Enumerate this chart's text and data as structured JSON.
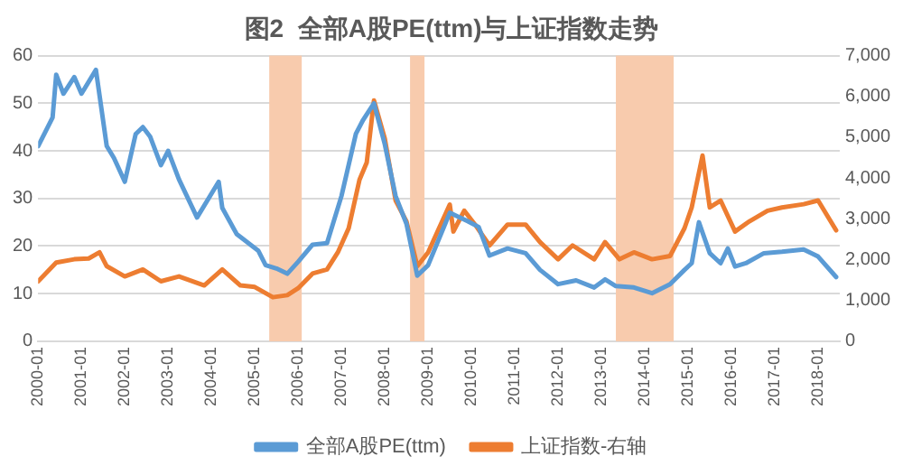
{
  "chart_data": {
    "type": "line",
    "title": "图2  全部A股PE(ttm)与上证指数走势",
    "xlim": [
      "2000-01",
      "2018-07"
    ],
    "xticks": [
      "2000-01",
      "2001-01",
      "2002-01",
      "2003-01",
      "2004-01",
      "2005-01",
      "2006-01",
      "2007-01",
      "2008-01",
      "2009-01",
      "2010-01",
      "2011-01",
      "2012-01",
      "2013-01",
      "2014-01",
      "2015-01",
      "2016-01",
      "2017-01",
      "2018-01"
    ],
    "ylim": [
      0,
      60
    ],
    "yticks": [
      0,
      10,
      20,
      30,
      40,
      50,
      60
    ],
    "y2lim": [
      0,
      7000
    ],
    "y2ticks": [
      {
        "value": 0,
        "label": "0"
      },
      {
        "value": 1000,
        "label": "1,000"
      },
      {
        "value": 2000,
        "label": "2,000"
      },
      {
        "value": 3000,
        "label": "3,000"
      },
      {
        "value": 4000,
        "label": "4,000"
      },
      {
        "value": 5000,
        "label": "5,000"
      },
      {
        "value": 6000,
        "label": "6,000"
      },
      {
        "value": 7000,
        "label": "7,000"
      }
    ],
    "grid": "y",
    "legend": "bottom",
    "marker": "none",
    "line_style": "solid",
    "bands": [
      {
        "axis": "x",
        "from": "2005-05",
        "to": "2006-02",
        "color": "#f8cbad"
      },
      {
        "axis": "x",
        "from": "2008-08",
        "to": "2008-12",
        "color": "#f8cbad"
      },
      {
        "axis": "x",
        "from": "2013-05",
        "to": "2014-09",
        "color": "#f8cbad"
      }
    ],
    "series": [
      {
        "name": "全部A股PE(ttm)",
        "color": "#5b9bd5",
        "x": [
          "2000-01",
          "2000-05",
          "2000-06",
          "2000-08",
          "2000-11",
          "2001-01",
          "2001-05",
          "2001-08",
          "2001-10",
          "2002-01",
          "2002-04",
          "2002-06",
          "2002-08",
          "2002-11",
          "2003-01",
          "2003-04",
          "2003-09",
          "2004-03",
          "2004-04",
          "2004-08",
          "2005-02",
          "2005-04",
          "2005-07",
          "2005-10",
          "2006-01",
          "2006-05",
          "2006-09",
          "2007-01",
          "2007-05",
          "2007-07",
          "2007-10",
          "2008-01",
          "2008-04",
          "2008-07",
          "2008-10",
          "2009-01",
          "2009-07",
          "2009-12",
          "2010-03",
          "2010-06",
          "2010-11",
          "2011-04",
          "2011-08",
          "2012-01",
          "2012-06",
          "2012-11",
          "2013-02",
          "2013-05",
          "2013-10",
          "2014-03",
          "2014-08",
          "2014-12",
          "2015-02",
          "2015-04",
          "2015-07",
          "2015-10",
          "2015-12",
          "2016-02",
          "2016-05",
          "2016-10",
          "2017-03",
          "2017-09",
          "2018-01",
          "2018-06"
        ],
        "values": [
          41,
          47,
          56,
          52,
          55.5,
          52,
          57,
          41,
          38.5,
          33.5,
          43.5,
          45,
          43,
          37,
          40,
          34,
          26,
          33.5,
          28,
          22.5,
          19,
          16,
          15.3,
          14.2,
          16.7,
          20.3,
          20.6,
          30.5,
          43.6,
          46.5,
          50,
          41.4,
          30.5,
          24.7,
          13.8,
          16,
          27,
          25.2,
          24,
          18,
          19.5,
          18.5,
          15,
          12,
          12.8,
          11.3,
          13,
          11.6,
          11.3,
          10.1,
          12,
          15,
          16.4,
          25,
          18.5,
          16.4,
          19.5,
          15.7,
          16.4,
          18.5,
          18.8,
          19.3,
          17.8,
          13.5
        ]
      },
      {
        "name": "上证指数-右轴",
        "color": "#ed7d31",
        "axis": "y2",
        "x": [
          "2000-01",
          "2000-06",
          "2000-11",
          "2001-03",
          "2001-06",
          "2001-08",
          "2002-01",
          "2002-06",
          "2002-11",
          "2003-04",
          "2003-11",
          "2004-04",
          "2004-09",
          "2005-01",
          "2005-06",
          "2005-10",
          "2006-01",
          "2006-05",
          "2006-09",
          "2006-12",
          "2007-03",
          "2007-06",
          "2007-08",
          "2007-10",
          "2008-01",
          "2008-04",
          "2008-07",
          "2008-10",
          "2009-01",
          "2009-07",
          "2009-08",
          "2009-11",
          "2010-02",
          "2010-06",
          "2010-11",
          "2011-04",
          "2011-08",
          "2012-01",
          "2012-05",
          "2012-11",
          "2013-02",
          "2013-06",
          "2013-10",
          "2014-03",
          "2014-08",
          "2014-12",
          "2015-02",
          "2015-05",
          "2015-07",
          "2015-10",
          "2016-02",
          "2016-06",
          "2016-11",
          "2017-03",
          "2017-09",
          "2018-01",
          "2018-06"
        ],
        "values": [
          1470,
          1930,
          2010,
          2030,
          2180,
          1840,
          1590,
          1760,
          1470,
          1590,
          1370,
          1760,
          1370,
          1330,
          1080,
          1130,
          1300,
          1660,
          1760,
          2180,
          2770,
          3960,
          4380,
          5900,
          4970,
          3450,
          2940,
          1840,
          2180,
          3350,
          2690,
          3200,
          2860,
          2350,
          2860,
          2860,
          2430,
          2010,
          2350,
          2010,
          2430,
          2010,
          2180,
          2010,
          2090,
          2770,
          3280,
          4550,
          3280,
          3450,
          2690,
          2940,
          3200,
          3280,
          3360,
          3450,
          2720
        ]
      }
    ]
  }
}
